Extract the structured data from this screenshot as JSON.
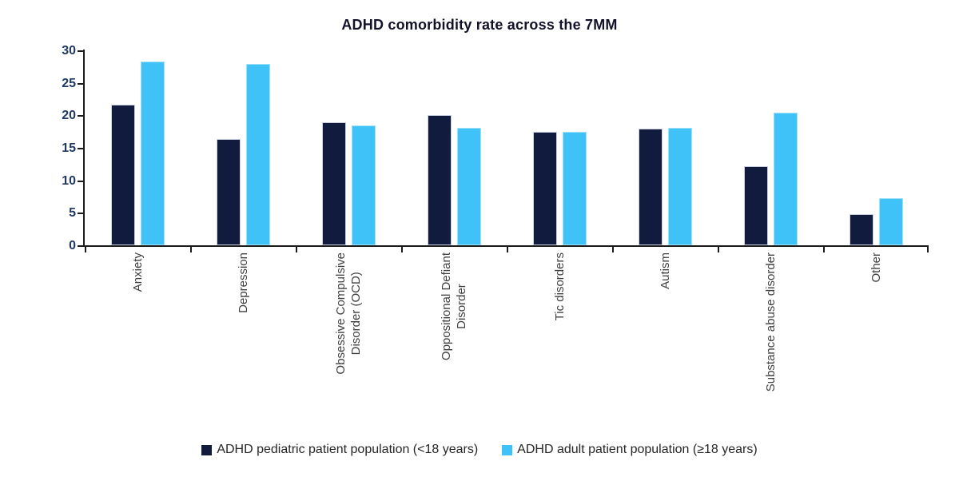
{
  "title": "ADHD comorbidity rate across the 7MM",
  "colors": {
    "pediatric_bar": "#101b3d",
    "adult_bar": "#3fc2f7",
    "axis": "#1a1a1a",
    "y_tick_label": "#1f3864",
    "category_label": "#404040",
    "legend_text": "#262626",
    "title_text": "#12122a"
  },
  "chart_data": {
    "type": "bar",
    "title": "ADHD comorbidity rate across the 7MM",
    "categories": [
      "Anxiety",
      "Depression",
      "Obsessive Compulsive Disorder (OCD)",
      "Oppositional Defiant Disorder",
      "Tic disorders",
      "Autism",
      "Substance abuse disorder",
      "Other"
    ],
    "category_label_lines": [
      [
        "Anxiety"
      ],
      [
        "Depression"
      ],
      [
        "Obsessive Compulsive",
        "Disorder (OCD)"
      ],
      [
        "Oppositional Defiant",
        "Disorder"
      ],
      [
        "Tic disorders"
      ],
      [
        "Autism"
      ],
      [
        "Substance abuse disorder"
      ],
      [
        "Other"
      ]
    ],
    "series": [
      {
        "name": "ADHD pediatric patient population (<18 years)",
        "key": "pediatric",
        "color": "#101b3d",
        "values": [
          21.7,
          16.3,
          18.9,
          20.1,
          17.5,
          17.9,
          12.2,
          4.8
        ]
      },
      {
        "name": "ADHD adult patient population (≥18 years)",
        "key": "adult",
        "color": "#3fc2f7",
        "values": [
          28.3,
          27.9,
          18.5,
          18.1,
          17.5,
          18.1,
          20.4,
          7.2
        ]
      }
    ],
    "xlabel": "",
    "ylabel": "",
    "ylim": [
      0,
      30
    ],
    "yticks": [
      0,
      5,
      10,
      15,
      20,
      25,
      30
    ],
    "grid": false,
    "legend_position": "bottom"
  }
}
